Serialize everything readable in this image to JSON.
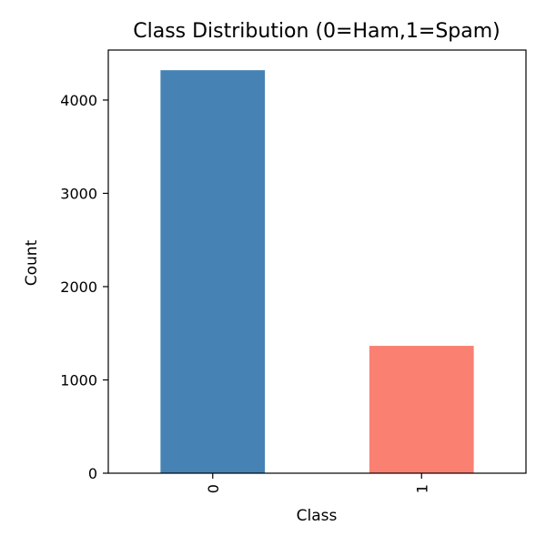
{
  "chart_data": {
    "type": "bar",
    "title": "Class Distribution (0=Ham,1=Spam)",
    "xlabel": "Class",
    "ylabel": "Count",
    "categories": [
      "0",
      "1"
    ],
    "values": [
      4320,
      1365
    ],
    "colors": [
      "#4682b4",
      "#fa8072"
    ],
    "ylim": [
      0,
      4536
    ],
    "yticks": [
      0,
      1000,
      2000,
      3000,
      4000
    ],
    "ytick_labels": [
      "0",
      "1000",
      "2000",
      "3000",
      "4000"
    ],
    "xtick_rotation": "vertical",
    "grid": false,
    "legend": "none"
  }
}
